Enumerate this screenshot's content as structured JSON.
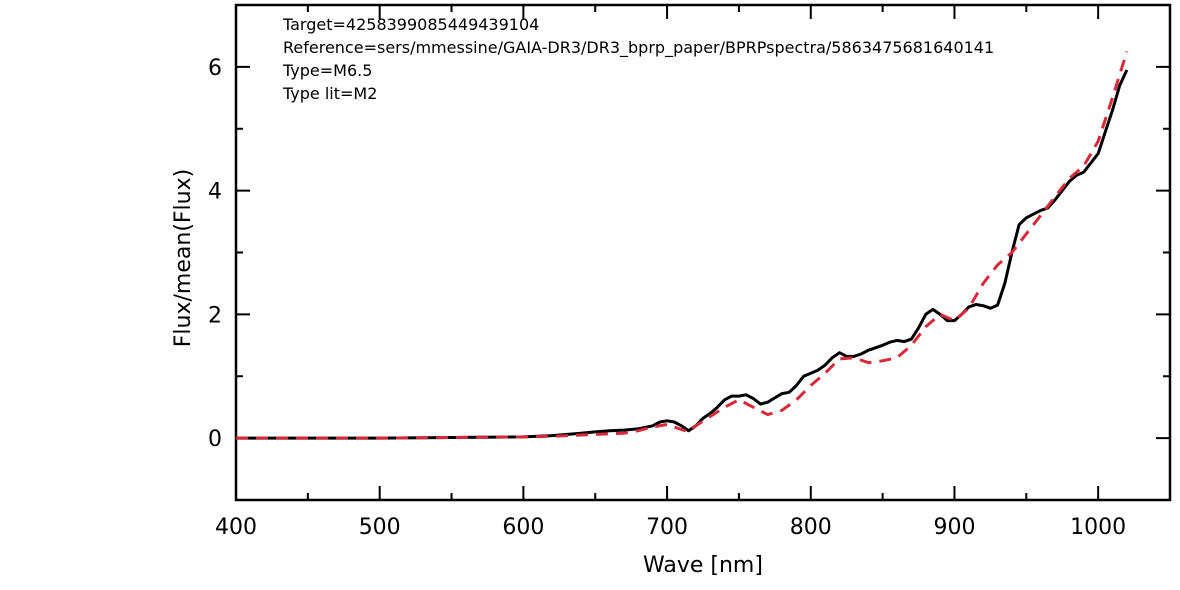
{
  "chart_data": {
    "type": "line",
    "xlabel": "Wave [nm]",
    "ylabel": "Flux/mean(Flux)",
    "xlim": [
      400,
      1050
    ],
    "ylim": [
      -1,
      7
    ],
    "xticks": [
      400,
      500,
      600,
      700,
      800,
      900,
      1000
    ],
    "yticks": [
      0,
      2,
      4,
      6
    ],
    "grid": false,
    "annotations": [
      "Target=4258399085449439104",
      "Reference=sers/mmessine/GAIA-DR3/DR3_bprp_paper/BPRPspectra/5863475681640141",
      "Type=M6.5",
      "Type lit=M2"
    ],
    "series": [
      {
        "style": "solid",
        "color": "#000000",
        "x": [
          400,
          450,
          500,
          550,
          600,
          620,
          640,
          650,
          660,
          670,
          680,
          690,
          695,
          700,
          705,
          710,
          715,
          720,
          725,
          730,
          735,
          740,
          745,
          750,
          755,
          760,
          765,
          770,
          775,
          780,
          785,
          790,
          795,
          800,
          805,
          810,
          815,
          820,
          825,
          830,
          835,
          840,
          845,
          850,
          855,
          860,
          865,
          870,
          875,
          880,
          885,
          890,
          895,
          900,
          905,
          910,
          915,
          920,
          925,
          930,
          935,
          940,
          945,
          950,
          955,
          960,
          965,
          970,
          975,
          980,
          985,
          990,
          995,
          1000,
          1005,
          1010,
          1015,
          1020
        ],
        "y": [
          0.0,
          0.0,
          0.0,
          0.01,
          0.02,
          0.04,
          0.08,
          0.1,
          0.12,
          0.13,
          0.15,
          0.2,
          0.26,
          0.28,
          0.26,
          0.2,
          0.12,
          0.2,
          0.32,
          0.4,
          0.5,
          0.62,
          0.68,
          0.68,
          0.7,
          0.64,
          0.55,
          0.58,
          0.65,
          0.72,
          0.74,
          0.85,
          1.0,
          1.05,
          1.1,
          1.18,
          1.3,
          1.38,
          1.32,
          1.32,
          1.36,
          1.42,
          1.46,
          1.5,
          1.55,
          1.58,
          1.56,
          1.6,
          1.78,
          2.0,
          2.08,
          2.0,
          1.9,
          1.9,
          2.0,
          2.12,
          2.16,
          2.14,
          2.1,
          2.15,
          2.5,
          3.0,
          3.45,
          3.56,
          3.62,
          3.68,
          3.72,
          3.85,
          4.0,
          4.15,
          4.25,
          4.3,
          4.45,
          4.6,
          4.95,
          5.3,
          5.7,
          5.95
        ]
      },
      {
        "style": "dashed",
        "color": "#d62a3a",
        "x": [
          400,
          450,
          500,
          550,
          600,
          620,
          640,
          660,
          670,
          680,
          690,
          700,
          710,
          715,
          720,
          730,
          740,
          750,
          760,
          770,
          780,
          790,
          800,
          810,
          820,
          830,
          840,
          850,
          860,
          870,
          880,
          890,
          900,
          910,
          920,
          930,
          940,
          950,
          960,
          970,
          980,
          990,
          1000,
          1010,
          1020
        ],
        "y": [
          0.0,
          0.0,
          0.0,
          0.01,
          0.02,
          0.03,
          0.05,
          0.07,
          0.08,
          0.12,
          0.18,
          0.22,
          0.14,
          0.1,
          0.2,
          0.35,
          0.5,
          0.62,
          0.5,
          0.38,
          0.45,
          0.62,
          0.85,
          1.05,
          1.28,
          1.3,
          1.22,
          1.25,
          1.3,
          1.5,
          1.8,
          2.0,
          1.9,
          2.1,
          2.5,
          2.8,
          3.0,
          3.3,
          3.6,
          3.9,
          4.2,
          4.4,
          4.8,
          5.5,
          6.25
        ]
      }
    ]
  }
}
